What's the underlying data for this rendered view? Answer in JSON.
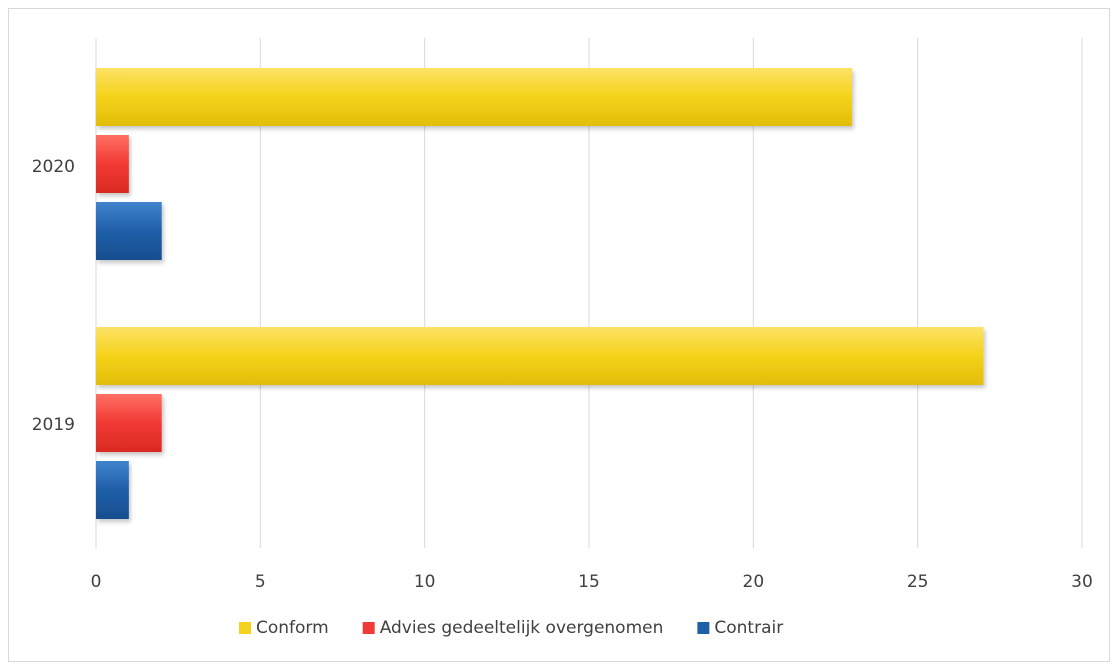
{
  "chart_data": {
    "type": "bar",
    "orientation": "horizontal",
    "categories": [
      "2020",
      "2019"
    ],
    "series": [
      {
        "name": "Conform",
        "color": "#f5d21e",
        "values": [
          23,
          27
        ]
      },
      {
        "name": "Advies gedeeltelijk overgenomen",
        "color": "#ef3b36",
        "values": [
          1,
          2
        ]
      },
      {
        "name": "Contrair",
        "color": "#1f5fa8",
        "values": [
          2,
          1
        ]
      }
    ],
    "xlim": [
      0,
      30
    ],
    "xticks": [
      0,
      5,
      10,
      15,
      20,
      25,
      30
    ],
    "grid": true,
    "legend": "bottom"
  }
}
